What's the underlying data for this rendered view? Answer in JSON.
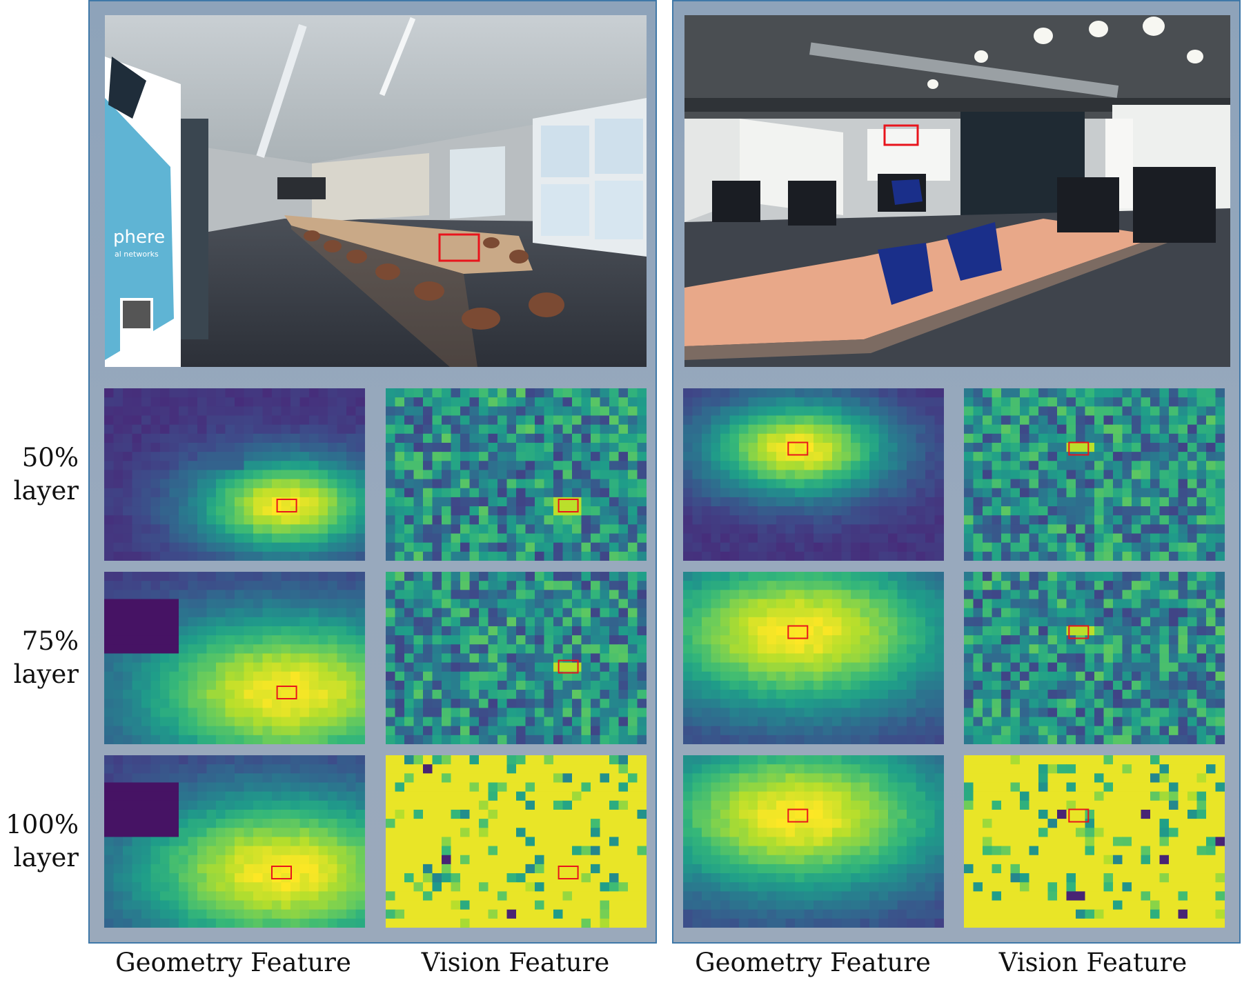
{
  "figure": {
    "rows": [
      {
        "label_line1": "50%",
        "label_line2": "layer"
      },
      {
        "label_line1": "75%",
        "label_line2": "layer"
      },
      {
        "label_line1": "100%",
        "label_line2": "layer"
      }
    ],
    "columns": [
      "Geometry Feature",
      "Vision Feature",
      "Geometry Feature",
      "Vision Feature"
    ],
    "scenes": [
      {
        "image": "conference-room-long-table",
        "query_box_color": "#e8141c",
        "banner_text": "phere",
        "banner_subtext": "al networks"
      },
      {
        "image": "meeting-room-whiteboards",
        "query_box_color": "#e8141c"
      }
    ],
    "colormap": "viridis",
    "colors": {
      "panel_border": "#3f78a8",
      "highlight_box": "#e8141c"
    }
  }
}
